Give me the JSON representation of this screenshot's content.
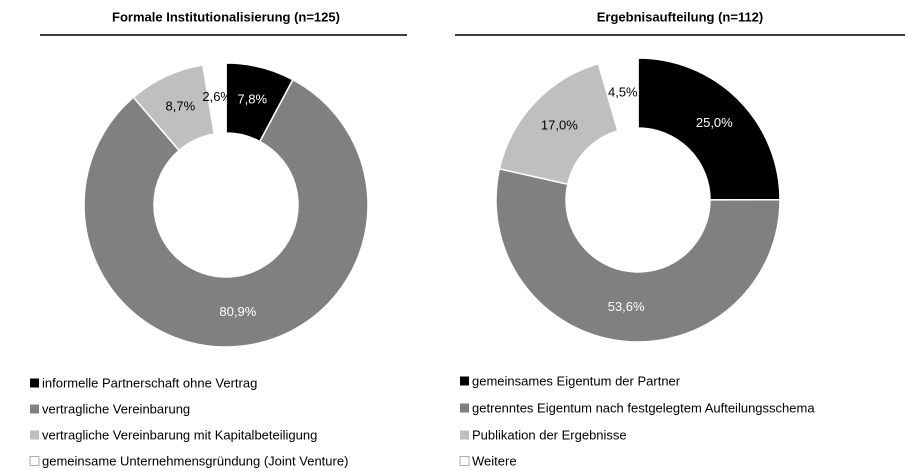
{
  "chart_data": [
    {
      "type": "pie",
      "title": "Formale Institutionalisierung (n=125)",
      "categories": [
        "informelle Partnerschaft ohne Vertrag",
        "vertragliche Vereinbarung",
        "vertragliche Vereinbarung mit Kapitalbeteiligung",
        "gemeinsame Unternehmensgründung (Joint Venture)"
      ],
      "values": [
        7.8,
        80.9,
        8.7,
        2.6
      ],
      "value_labels": [
        "7,8%",
        "80,9%",
        "8,7%",
        "2,6%"
      ],
      "colors": [
        "#000000",
        "#808080",
        "#bfbfbf",
        "#ffffff"
      ]
    },
    {
      "type": "pie",
      "title": "Ergebnisaufteilung (n=112)",
      "categories": [
        "gemeinsames Eigentum der Partner",
        "getrenntes Eigentum nach festgelegtem Aufteilungsschema",
        "Publikation der Ergebnisse",
        "Weitere"
      ],
      "values": [
        25.0,
        53.6,
        17.0,
        4.5
      ],
      "value_labels": [
        "25,0%",
        "53,6%",
        "17,0%",
        "4,5%"
      ],
      "colors": [
        "#000000",
        "#808080",
        "#bfbfbf",
        "#ffffff"
      ]
    }
  ]
}
